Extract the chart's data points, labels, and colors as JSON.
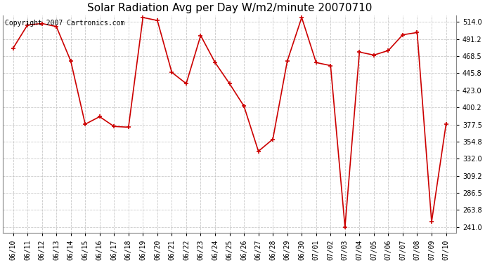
{
  "title": "Solar Radiation Avg per Day W/m2/minute 20070710",
  "copyright_text": "Copyright 2007 Cartronics.com",
  "labels": [
    "06/10",
    "06/11",
    "06/12",
    "06/13",
    "06/14",
    "06/15",
    "06/16",
    "06/17",
    "06/18",
    "06/19",
    "06/20",
    "06/21",
    "06/22",
    "06/23",
    "06/24",
    "06/25",
    "06/26",
    "06/27",
    "06/28",
    "06/29",
    "06/30",
    "07/01",
    "07/02",
    "07/03",
    "07/04",
    "07/05",
    "07/06",
    "07/07",
    "07/08",
    "07/09",
    "07/10"
  ],
  "values": [
    479,
    510,
    512,
    508,
    462,
    378,
    388,
    375,
    374,
    520,
    516,
    447,
    432,
    496,
    460,
    432,
    402,
    342,
    358,
    462,
    520,
    460,
    456,
    241,
    474,
    470,
    476,
    497,
    500,
    248,
    378
  ],
  "line_color": "#cc0000",
  "marker": "+",
  "marker_size": 5,
  "line_width": 1.2,
  "background_color": "#ffffff",
  "plot_bg_color": "#ffffff",
  "grid_color": "#bbbbbb",
  "yticks": [
    241.0,
    263.8,
    286.5,
    309.2,
    332.0,
    354.8,
    377.5,
    400.2,
    423.0,
    445.8,
    468.5,
    491.2,
    514.0
  ],
  "ylim": [
    233.0,
    523.0
  ],
  "title_fontsize": 11,
  "tick_fontsize": 7,
  "copyright_fontsize": 7
}
